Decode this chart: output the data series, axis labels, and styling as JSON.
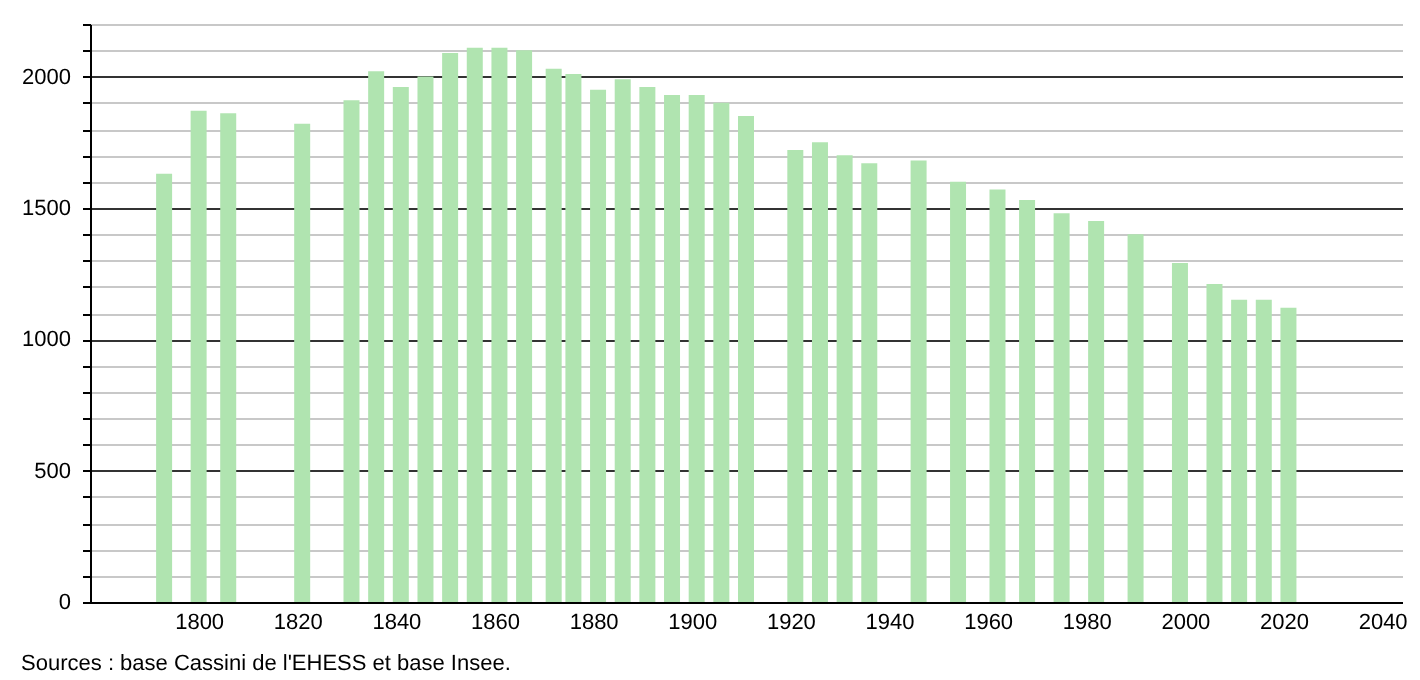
{
  "chart_data": {
    "type": "bar",
    "x": [
      1793,
      1800,
      1806,
      1821,
      1831,
      1836,
      1841,
      1846,
      1851,
      1856,
      1861,
      1866,
      1872,
      1876,
      1881,
      1886,
      1891,
      1896,
      1901,
      1906,
      1911,
      1921,
      1926,
      1931,
      1936,
      1946,
      1954,
      1962,
      1968,
      1975,
      1982,
      1990,
      1999,
      2006,
      2011,
      2016,
      2021
    ],
    "values": [
      1630,
      1870,
      1860,
      1820,
      1910,
      2020,
      1960,
      2000,
      2090,
      2110,
      2110,
      2100,
      2030,
      2010,
      1950,
      1990,
      1960,
      1930,
      1930,
      1900,
      1850,
      1720,
      1750,
      1700,
      1670,
      1680,
      1600,
      1570,
      1530,
      1480,
      1450,
      1400,
      1290,
      1210,
      1150,
      1150,
      1120
    ],
    "color": "#b0e4b0",
    "xlim": [
      1780,
      2042
    ],
    "xticks": [
      1800,
      1820,
      1840,
      1860,
      1880,
      1900,
      1920,
      1940,
      1960,
      1980,
      2000,
      2020,
      2040
    ],
    "ylim": [
      0,
      2200
    ],
    "yticks": [
      0,
      {
        "value": 100,
        "label": null
      },
      {
        "value": 200,
        "label": null
      },
      {
        "value": 300,
        "label": null
      },
      {
        "value": 400,
        "label": null
      },
      500,
      {
        "value": 600,
        "label": null
      },
      {
        "value": 700,
        "label": null
      },
      {
        "value": 800,
        "label": null
      },
      {
        "value": 900,
        "label": null
      },
      1000,
      {
        "value": 1100,
        "label": null
      },
      {
        "value": 1200,
        "label": null
      },
      {
        "value": 1300,
        "label": null
      },
      {
        "value": 1400,
        "label": null
      },
      1500,
      {
        "value": 1600,
        "label": null
      },
      {
        "value": 1700,
        "label": null
      },
      {
        "value": 1800,
        "label": null
      },
      {
        "value": 1900,
        "label": null
      },
      2000,
      {
        "value": 2100,
        "label": null
      },
      {
        "value": 2200,
        "label": null
      }
    ],
    "grid": "y",
    "annotations": [
      "Sources : base Cassini de l'EHESS et base Insee."
    ]
  }
}
